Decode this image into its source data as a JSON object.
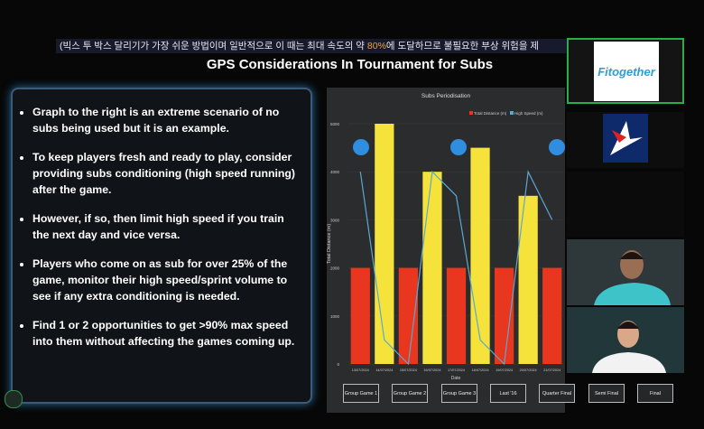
{
  "caption": {
    "before": "(빅스 투 박스 달리기가 가장 쉬운 방법이며 일반적으로 이 때는 최대 속도의 약 ",
    "highlight": "80%",
    "after": "에 도달하므로 불필요한 부상 위험을 제"
  },
  "slide_title": "GPS Considerations In Tournament for Subs",
  "bullets": [
    "Graph to the right is an extreme scenario of no subs being used but it is an example.",
    "To keep players fresh and ready to play, consider providing subs conditioning (high speed running) after the game.",
    "However, if so, then limit high speed if you train the next day and vice versa.",
    "Players who come on as sub for over 25% of the game, monitor their high speed/sprint volume to see if any extra conditioning is needed.",
    "Find 1 or 2 opportunities to get >90% max speed into them without affecting the games coming up."
  ],
  "participant_logo": "Fitogether",
  "buttons": [
    "Group Game 1",
    "Group Game 2",
    "Group Game 3",
    "Last '16",
    "Quarter Final",
    "Semi Final",
    "Final"
  ],
  "chart_data": {
    "type": "bar",
    "title": "Subs Periodisation",
    "x_label": "Date",
    "y_label": "Total Distance (m)",
    "categories": [
      "13/07/2024",
      "14/07/2024",
      "15/07/2024",
      "16/07/2024",
      "17/07/2024",
      "18/07/2024",
      "19/07/2024",
      "20/07/2024",
      "21/07/2024"
    ],
    "series": [
      {
        "name": "Total Distance (m)",
        "color": "#e8361f",
        "colors": [
          "#e8361f",
          "#f5e23a",
          "#e8361f",
          "#f5e23a",
          "#e8361f",
          "#f5e23a",
          "#e8361f",
          "#f5e23a",
          "#e8361f"
        ],
        "values": [
          2000,
          5000,
          2000,
          4000,
          2000,
          4500,
          2000,
          3500,
          2000
        ]
      },
      {
        "name": "High Speed (m)",
        "type": "line",
        "color": "#5aa8d2",
        "values": [
          4000,
          500,
          0,
          4000,
          3500,
          500,
          0,
          4000,
          3000
        ]
      }
    ],
    "ylim": [
      0,
      5000
    ],
    "yticks": [
      0,
      1000,
      2000,
      3000,
      4000,
      5000
    ]
  }
}
